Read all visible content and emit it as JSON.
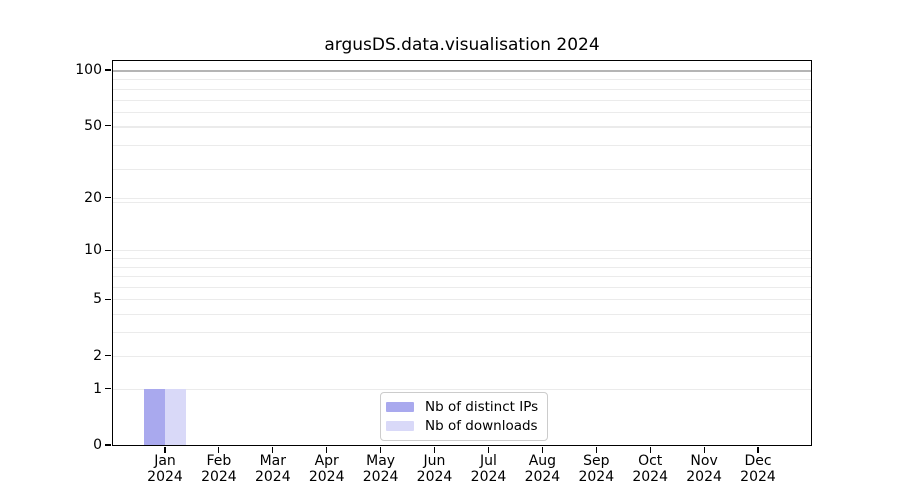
{
  "figure": {
    "background": "#ffffff"
  },
  "chart_data": {
    "type": "bar",
    "title": "argusDS.data.visualisation 2024",
    "categories": [
      "Jan 2024",
      "Feb 2024",
      "Mar 2024",
      "Apr 2024",
      "May 2024",
      "Jun 2024",
      "Jul 2024",
      "Aug 2024",
      "Sep 2024",
      "Oct 2024",
      "Nov 2024",
      "Dec 2024"
    ],
    "series": [
      {
        "name": "Nb of distinct IPs",
        "color": "#a9a9ee",
        "values": [
          1,
          0,
          0,
          0,
          0,
          0,
          0,
          0,
          0,
          0,
          0,
          0
        ]
      },
      {
        "name": "Nb of downloads",
        "color": "#d9d9f8",
        "values": [
          1,
          0,
          0,
          0,
          0,
          0,
          0,
          0,
          0,
          0,
          0,
          0
        ]
      }
    ],
    "xlabel": "",
    "ylabel": "",
    "yscale": "log1p",
    "yticks_major": [
      0,
      1,
      2,
      5,
      10,
      20,
      50,
      100
    ],
    "yticks_minor": [
      3,
      4,
      6,
      7,
      8,
      9,
      19,
      29,
      39,
      49,
      59,
      69,
      79,
      89,
      99
    ],
    "ylim": [
      0,
      110
    ],
    "grid": "both-horizontal",
    "legend": {
      "position": "lower-center-inside",
      "entries": [
        "Nb of distinct IPs",
        "Nb of downloads"
      ]
    },
    "colors": {
      "grid_line": "#ebebeb",
      "grid_line_strong": "#b5b5b5",
      "axis_line": "#000000",
      "text": "#000000",
      "legend_border": "#cccccc"
    }
  }
}
